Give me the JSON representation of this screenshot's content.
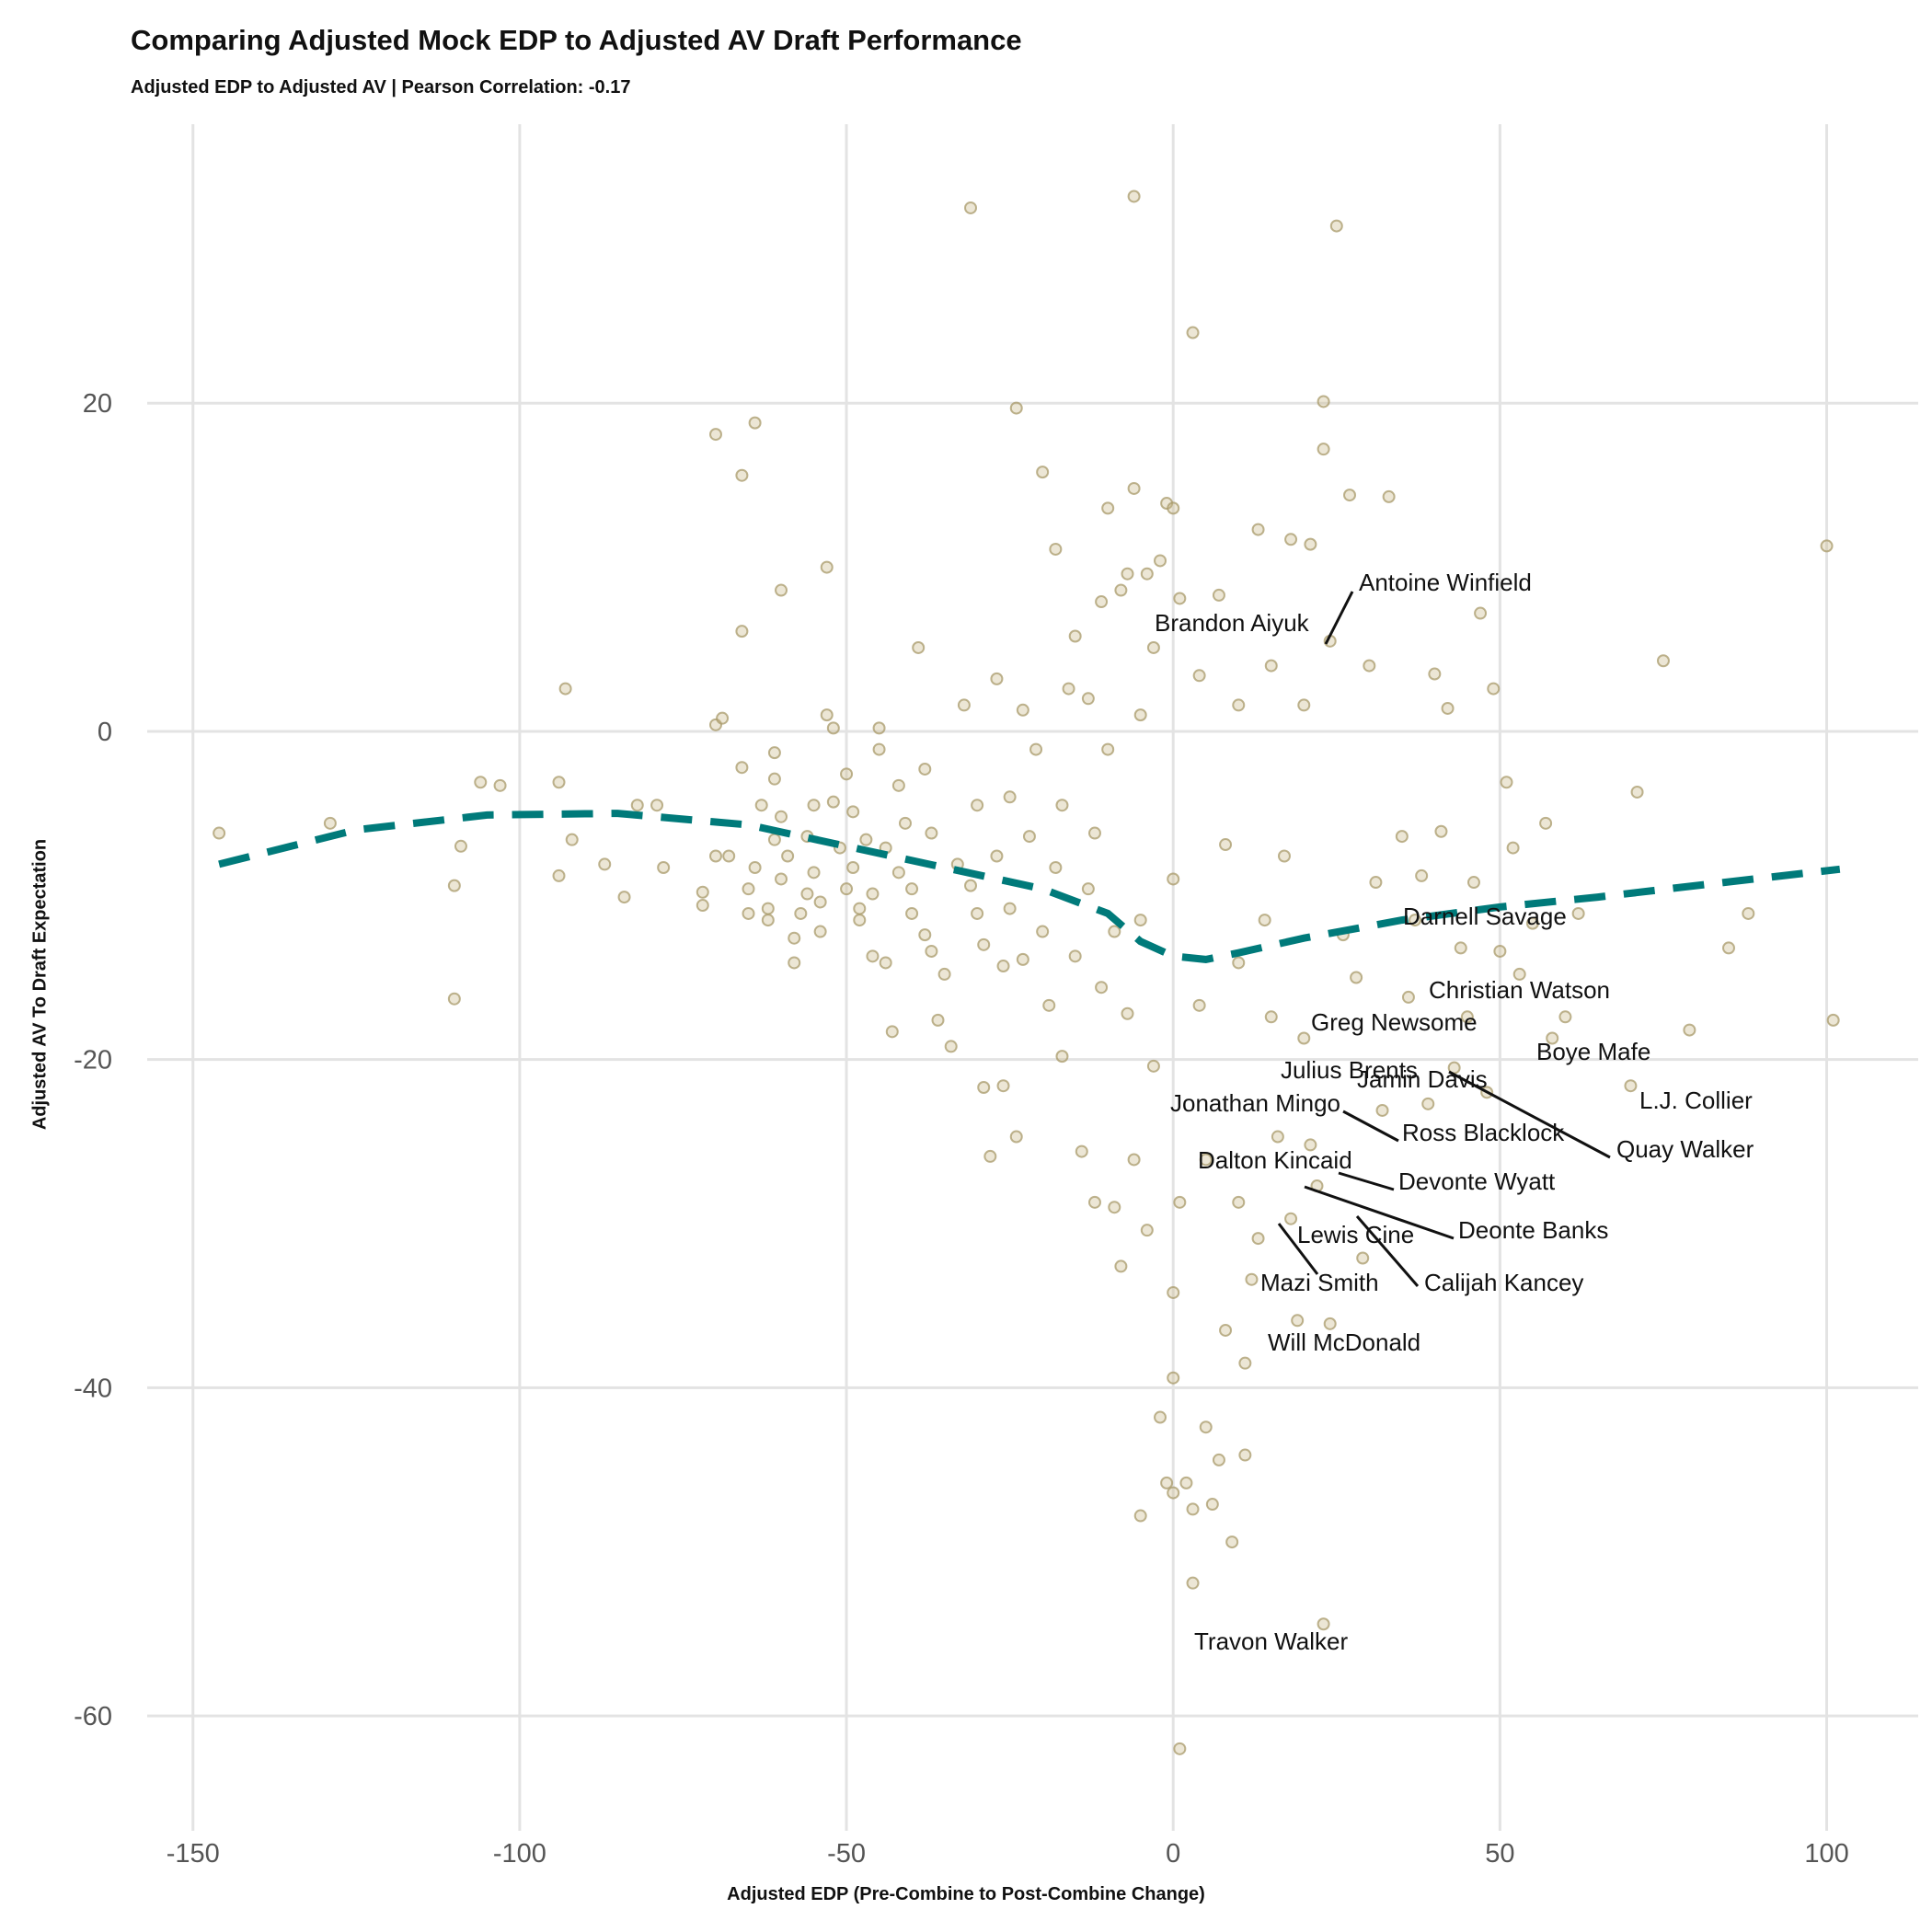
{
  "title": "Comparing Adjusted Mock EDP to Adjusted AV Draft Performance",
  "subtitle": "Adjusted EDP to Adjusted AV | Pearson Correlation: -0.17",
  "chart_data": {
    "type": "scatter",
    "title": "Comparing Adjusted Mock EDP to Adjusted AV Draft Performance",
    "subtitle": "Adjusted EDP to Adjusted AV | Pearson Correlation: -0.17",
    "xlabel": "Adjusted EDP (Pre-Combine to Post-Combine Change)",
    "ylabel": "Adjusted AV To Draft Expectation",
    "xlim": [
      -157,
      114
    ],
    "ylim": [
      -67,
      37
    ],
    "x_ticks": [
      -150,
      -100,
      -50,
      0,
      50,
      100
    ],
    "y_ticks": [
      -60,
      -40,
      -20,
      0,
      20
    ],
    "x_tick_labels": [
      "-150",
      "-100",
      "-50",
      "0",
      "50",
      "100"
    ],
    "y_tick_labels": [
      "-60",
      "-40",
      "-20",
      "0",
      "20"
    ],
    "grid": true,
    "point_color": "#c8b888",
    "trend_color": "#007a7a",
    "trend_line": {
      "style": "dashed",
      "points": [
        [
          -146,
          -8.1
        ],
        [
          -125,
          -6.0
        ],
        [
          -105,
          -5.1
        ],
        [
          -85,
          -5.0
        ],
        [
          -65,
          -5.7
        ],
        [
          -50,
          -7.0
        ],
        [
          -35,
          -8.3
        ],
        [
          -20,
          -9.6
        ],
        [
          -10,
          -11.1
        ],
        [
          -5,
          -12.8
        ],
        [
          0,
          -13.7
        ],
        [
          5,
          -13.9
        ],
        [
          10,
          -13.5
        ],
        [
          20,
          -12.6
        ],
        [
          35,
          -11.5
        ],
        [
          50,
          -10.7
        ],
        [
          65,
          -10.1
        ],
        [
          80,
          -9.4
        ],
        [
          102,
          -8.4
        ]
      ]
    },
    "points": [
      [
        -146,
        -6.2
      ],
      [
        -129,
        -5.6
      ],
      [
        -110,
        -16.3
      ],
      [
        -110,
        -9.4
      ],
      [
        -109,
        -7.0
      ],
      [
        -106,
        -3.1
      ],
      [
        -103,
        -3.3
      ],
      [
        -94,
        -3.1
      ],
      [
        -94,
        -8.8
      ],
      [
        -93,
        2.6
      ],
      [
        -92,
        -6.6
      ],
      [
        -87,
        -8.1
      ],
      [
        -84,
        -10.1
      ],
      [
        -82,
        -4.5
      ],
      [
        -79,
        -4.5
      ],
      [
        -78,
        -8.3
      ],
      [
        -72,
        -9.8
      ],
      [
        -72,
        -10.6
      ],
      [
        -70,
        0.4
      ],
      [
        -70,
        18.1
      ],
      [
        -70,
        -7.6
      ],
      [
        -69,
        0.8
      ],
      [
        -68,
        -7.6
      ],
      [
        -66,
        15.6
      ],
      [
        -66,
        6.1
      ],
      [
        -66,
        -2.2
      ],
      [
        -65,
        -9.6
      ],
      [
        -65,
        -11.1
      ],
      [
        -64,
        18.8
      ],
      [
        -64,
        -8.3
      ],
      [
        -63,
        -4.5
      ],
      [
        -62,
        -10.8
      ],
      [
        -62,
        -11.5
      ],
      [
        -61,
        -1.3
      ],
      [
        -61,
        -2.9
      ],
      [
        -61,
        -6.6
      ],
      [
        -60,
        8.6
      ],
      [
        -60,
        -5.2
      ],
      [
        -60,
        -9.0
      ],
      [
        -59,
        -7.6
      ],
      [
        -58,
        -12.6
      ],
      [
        -58,
        -14.1
      ],
      [
        -57,
        -11.1
      ],
      [
        -56,
        -6.4
      ],
      [
        -56,
        -9.9
      ],
      [
        -55,
        -4.5
      ],
      [
        -55,
        -8.6
      ],
      [
        -54,
        -10.4
      ],
      [
        -54,
        -12.2
      ],
      [
        -53,
        10.0
      ],
      [
        -53,
        1.0
      ],
      [
        -52,
        0.2
      ],
      [
        -52,
        -4.3
      ],
      [
        -51,
        -7.1
      ],
      [
        -50,
        -2.6
      ],
      [
        -50,
        -9.6
      ],
      [
        -49,
        -4.9
      ],
      [
        -49,
        -8.3
      ],
      [
        -48,
        -10.8
      ],
      [
        -48,
        -11.5
      ],
      [
        -47,
        -6.6
      ],
      [
        -46,
        -9.9
      ],
      [
        -46,
        -13.7
      ],
      [
        -45,
        -1.1
      ],
      [
        -45,
        0.2
      ],
      [
        -44,
        -7.1
      ],
      [
        -44,
        -14.1
      ],
      [
        -43,
        -18.3
      ],
      [
        -42,
        -3.3
      ],
      [
        -42,
        -8.6
      ],
      [
        -41,
        -5.6
      ],
      [
        -40,
        -9.6
      ],
      [
        -40,
        -11.1
      ],
      [
        -39,
        5.1
      ],
      [
        -38,
        -2.3
      ],
      [
        -38,
        -12.4
      ],
      [
        -37,
        -6.2
      ],
      [
        -37,
        -13.4
      ],
      [
        -36,
        -17.6
      ],
      [
        -35,
        -14.8
      ],
      [
        -34,
        -19.2
      ],
      [
        -33,
        -8.1
      ],
      [
        -32,
        1.6
      ],
      [
        -31,
        31.9
      ],
      [
        -31,
        -9.4
      ],
      [
        -30,
        -4.5
      ],
      [
        -30,
        -11.1
      ],
      [
        -29,
        -21.7
      ],
      [
        -29,
        -13.0
      ],
      [
        -28,
        -25.9
      ],
      [
        -27,
        3.2
      ],
      [
        -27,
        -7.6
      ],
      [
        -26,
        -14.3
      ],
      [
        -26,
        -21.6
      ],
      [
        -25,
        -4.0
      ],
      [
        -25,
        -10.8
      ],
      [
        -24,
        19.7
      ],
      [
        -24,
        -24.7
      ],
      [
        -23,
        1.3
      ],
      [
        -23,
        -13.9
      ],
      [
        -22,
        -6.4
      ],
      [
        -21,
        -1.1
      ],
      [
        -20,
        15.8
      ],
      [
        -20,
        -12.2
      ],
      [
        -19,
        -16.7
      ],
      [
        -18,
        11.1
      ],
      [
        -18,
        -8.3
      ],
      [
        -17,
        -4.5
      ],
      [
        -17,
        -19.8
      ],
      [
        -16,
        2.6
      ],
      [
        -15,
        -13.7
      ],
      [
        -15,
        5.8
      ],
      [
        -14,
        -25.6
      ],
      [
        -13,
        -9.6
      ],
      [
        -13,
        2.0
      ],
      [
        -12,
        -28.7
      ],
      [
        -12,
        -6.2
      ],
      [
        -11,
        7.9
      ],
      [
        -11,
        -15.6
      ],
      [
        -10,
        13.6
      ],
      [
        -10,
        -1.1
      ],
      [
        -9,
        -12.2
      ],
      [
        -9,
        -29.0
      ],
      [
        -8,
        8.6
      ],
      [
        -8,
        -32.6
      ],
      [
        -7,
        9.6
      ],
      [
        -7,
        -17.2
      ],
      [
        -6,
        32.6
      ],
      [
        -6,
        14.8
      ],
      [
        -6,
        -26.1
      ],
      [
        -5,
        1.0
      ],
      [
        -5,
        -11.5
      ],
      [
        -5,
        -47.8
      ],
      [
        -4,
        9.6
      ],
      [
        -4,
        -30.4
      ],
      [
        -3,
        5.1
      ],
      [
        -3,
        -20.4
      ],
      [
        -2,
        10.4
      ],
      [
        -2,
        -41.8
      ],
      [
        -1,
        13.9
      ],
      [
        -1,
        -45.8
      ],
      [
        0,
        13.6
      ],
      [
        0,
        -9.0
      ],
      [
        0,
        -34.2
      ],
      [
        0,
        -39.4
      ],
      [
        0,
        -46.4
      ],
      [
        1,
        8.1
      ],
      [
        1,
        -62.0
      ],
      [
        1,
        -28.7
      ],
      [
        2,
        -45.8
      ],
      [
        3,
        24.3
      ],
      [
        3,
        -51.9
      ],
      [
        3,
        -47.4
      ],
      [
        4,
        3.4
      ],
      [
        4,
        -16.7
      ],
      [
        5,
        -42.4
      ],
      [
        5,
        -26.1
      ],
      [
        6,
        -47.1
      ],
      [
        7,
        8.3
      ],
      [
        7,
        -44.4
      ],
      [
        8,
        -36.5
      ],
      [
        8,
        -6.9
      ],
      [
        9,
        -49.4
      ],
      [
        10,
        -14.1
      ],
      [
        10,
        1.6
      ],
      [
        10,
        -28.7
      ],
      [
        11,
        -38.5
      ],
      [
        11,
        -44.1
      ],
      [
        12,
        -33.4
      ],
      [
        13,
        12.3
      ],
      [
        13,
        -30.9
      ],
      [
        14,
        -11.5
      ],
      [
        15,
        4.0
      ],
      [
        15,
        -17.4
      ],
      [
        16,
        -24.7
      ],
      [
        17,
        -7.6
      ],
      [
        18,
        11.7
      ],
      [
        18,
        -29.7
      ],
      [
        19,
        -35.9
      ],
      [
        20,
        1.6
      ],
      [
        20,
        -18.7
      ],
      [
        21,
        11.4
      ],
      [
        21,
        -25.2
      ],
      [
        22,
        -27.7
      ],
      [
        23,
        -54.4
      ],
      [
        23,
        20.1
      ],
      [
        23,
        17.2
      ],
      [
        24,
        5.5
      ],
      [
        24,
        -36.1
      ],
      [
        25,
        30.8
      ],
      [
        26,
        -12.4
      ],
      [
        27,
        14.4
      ],
      [
        28,
        -15.0
      ],
      [
        29,
        -32.1
      ],
      [
        30,
        4.0
      ],
      [
        31,
        -9.2
      ],
      [
        32,
        -23.1
      ],
      [
        33,
        14.3
      ],
      [
        35,
        -6.4
      ],
      [
        36,
        -16.2
      ],
      [
        37,
        -11.5
      ],
      [
        38,
        -8.8
      ],
      [
        39,
        -22.7
      ],
      [
        40,
        3.5
      ],
      [
        41,
        -6.1
      ],
      [
        42,
        1.4
      ],
      [
        43,
        -20.5
      ],
      [
        44,
        -13.2
      ],
      [
        45,
        -17.4
      ],
      [
        46,
        -9.2
      ],
      [
        47,
        7.2
      ],
      [
        48,
        -22.0
      ],
      [
        49,
        2.6
      ],
      [
        50,
        -13.4
      ],
      [
        51,
        -3.1
      ],
      [
        52,
        -7.1
      ],
      [
        53,
        -14.8
      ],
      [
        55,
        -11.7
      ],
      [
        57,
        -5.6
      ],
      [
        58,
        -18.7
      ],
      [
        60,
        -17.4
      ],
      [
        62,
        -11.1
      ],
      [
        70,
        -21.6
      ],
      [
        71,
        -3.7
      ],
      [
        75,
        4.3
      ],
      [
        79,
        -18.2
      ],
      [
        85,
        -13.2
      ],
      [
        88,
        -11.1
      ],
      [
        100,
        11.3
      ],
      [
        101,
        -17.6
      ]
    ],
    "annotations": [
      {
        "label": "Antoine Winfield"
      },
      {
        "label": "Brandon Aiyuk"
      },
      {
        "label": "Darnell Savage"
      },
      {
        "label": "Christian Watson"
      },
      {
        "label": "Greg Newsome"
      },
      {
        "label": "Boye Mafe"
      },
      {
        "label": "Julius Brents"
      },
      {
        "label": "Jamin Davis"
      },
      {
        "label": "L.J. Collier"
      },
      {
        "label": "Jonathan Mingo"
      },
      {
        "label": "Ross Blacklock"
      },
      {
        "label": "Quay Walker"
      },
      {
        "label": "Dalton Kincaid"
      },
      {
        "label": "Devonte Wyatt"
      },
      {
        "label": "Deonte Banks"
      },
      {
        "label": "Lewis Cine"
      },
      {
        "label": "Mazi Smith"
      },
      {
        "label": "Calijah Kancey"
      },
      {
        "label": "Will McDonald"
      },
      {
        "label": "Travon Walker"
      }
    ]
  }
}
